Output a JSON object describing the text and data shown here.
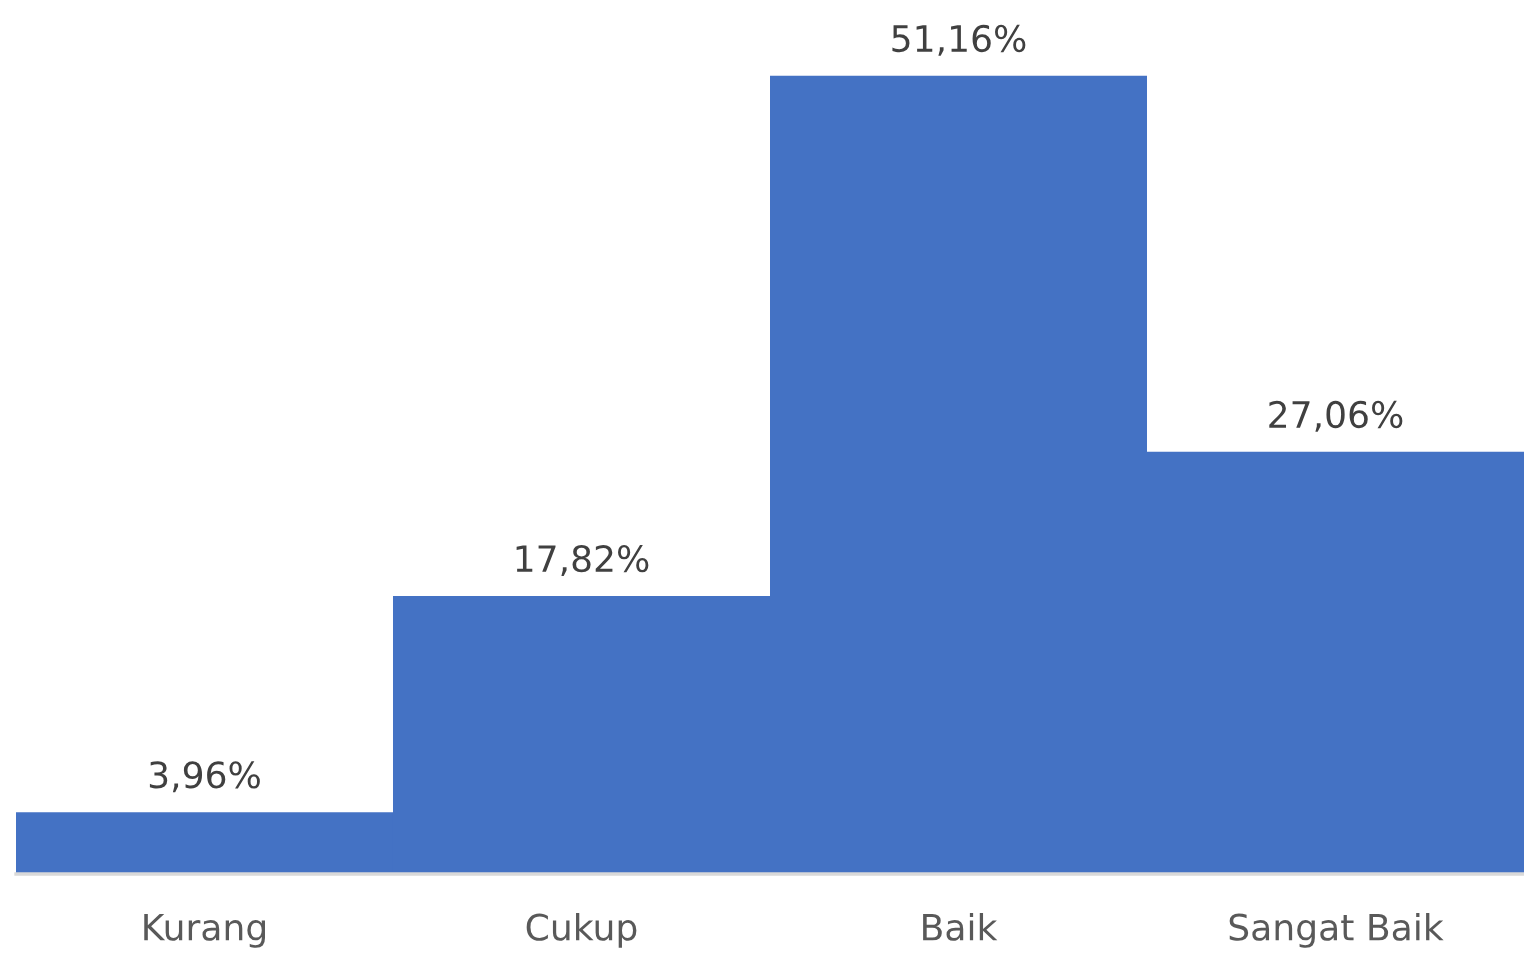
{
  "chart_data": {
    "type": "bar",
    "categories": [
      "Kurang",
      "Cukup",
      "Baik",
      "Sangat Baik"
    ],
    "values": [
      3.96,
      17.82,
      51.16,
      27.06
    ],
    "color": "#4472c4",
    "value_labels": [
      "3,96%",
      "17,82%",
      "51,16%",
      "27,06%"
    ]
  }
}
